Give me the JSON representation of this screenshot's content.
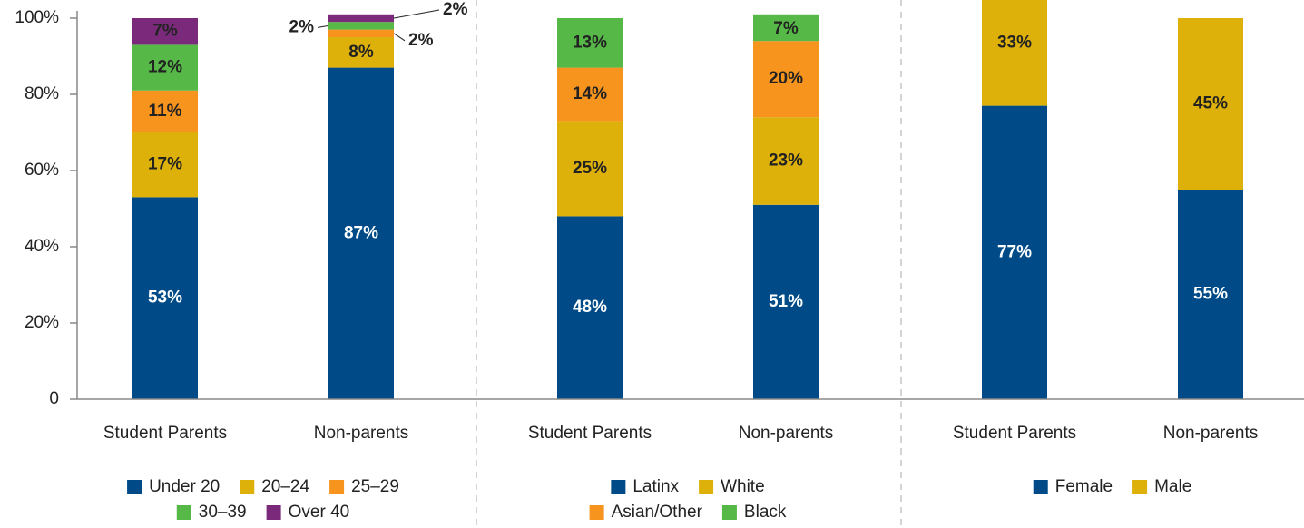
{
  "chart_data": [
    {
      "type": "stacked_bar",
      "categories": [
        "Student Parents",
        "Non-parents"
      ],
      "ylim": [
        0,
        100
      ],
      "yticks": [
        0,
        {
          "value": 20,
          "label": "20%"
        },
        {
          "value": 40,
          "label": "40%"
        },
        {
          "value": 60,
          "label": "60%"
        },
        {
          "value": 80,
          "label": "80%"
        },
        {
          "value": 100,
          "label": "100%"
        }
      ],
      "series": [
        {
          "name": "Under 20",
          "color": "#004b87",
          "values": [
            53,
            87
          ],
          "value_labels": [
            "53%",
            "87%"
          ]
        },
        {
          "name": "20–24",
          "color": "#ddb10a",
          "values": [
            17,
            8
          ],
          "value_labels": [
            "17%",
            "8%"
          ]
        },
        {
          "name": "25–29",
          "color": "#f7941d",
          "values": [
            11,
            2
          ],
          "value_labels": [
            "11%",
            "2%"
          ]
        },
        {
          "name": "30–39",
          "color": "#56b947",
          "values": [
            12,
            2
          ],
          "value_labels": [
            "12%",
            "2%"
          ]
        },
        {
          "name": "Over 40",
          "color": "#7b2a7b",
          "values": [
            7,
            2
          ],
          "value_labels": [
            "7%",
            "2%"
          ]
        }
      ]
    },
    {
      "type": "stacked_bar",
      "categories": [
        "Student Parents",
        "Non-parents"
      ],
      "series": [
        {
          "name": "Latinx",
          "color": "#004b87",
          "values": [
            48,
            51
          ],
          "value_labels": [
            "48%",
            "51%"
          ]
        },
        {
          "name": "White",
          "color": "#ddb10a",
          "values": [
            25,
            23
          ],
          "value_labels": [
            "25%",
            "23%"
          ]
        },
        {
          "name": "Asian/Other",
          "color": "#f7941d",
          "values": [
            14,
            20
          ],
          "value_labels": [
            "14%",
            "20%"
          ]
        },
        {
          "name": "Black",
          "color": "#56b947",
          "values": [
            13,
            7
          ],
          "value_labels": [
            "13%",
            "7%"
          ]
        }
      ]
    },
    {
      "type": "stacked_bar",
      "categories": [
        "Student Parents",
        "Non-parents"
      ],
      "series": [
        {
          "name": "Female",
          "color": "#004b87",
          "values": [
            77,
            55
          ],
          "value_labels": [
            "77%",
            "55%"
          ]
        },
        {
          "name": "Male",
          "color": "#ddb10a",
          "values": [
            33,
            45
          ],
          "value_labels": [
            "33%",
            "45%"
          ]
        }
      ]
    }
  ]
}
